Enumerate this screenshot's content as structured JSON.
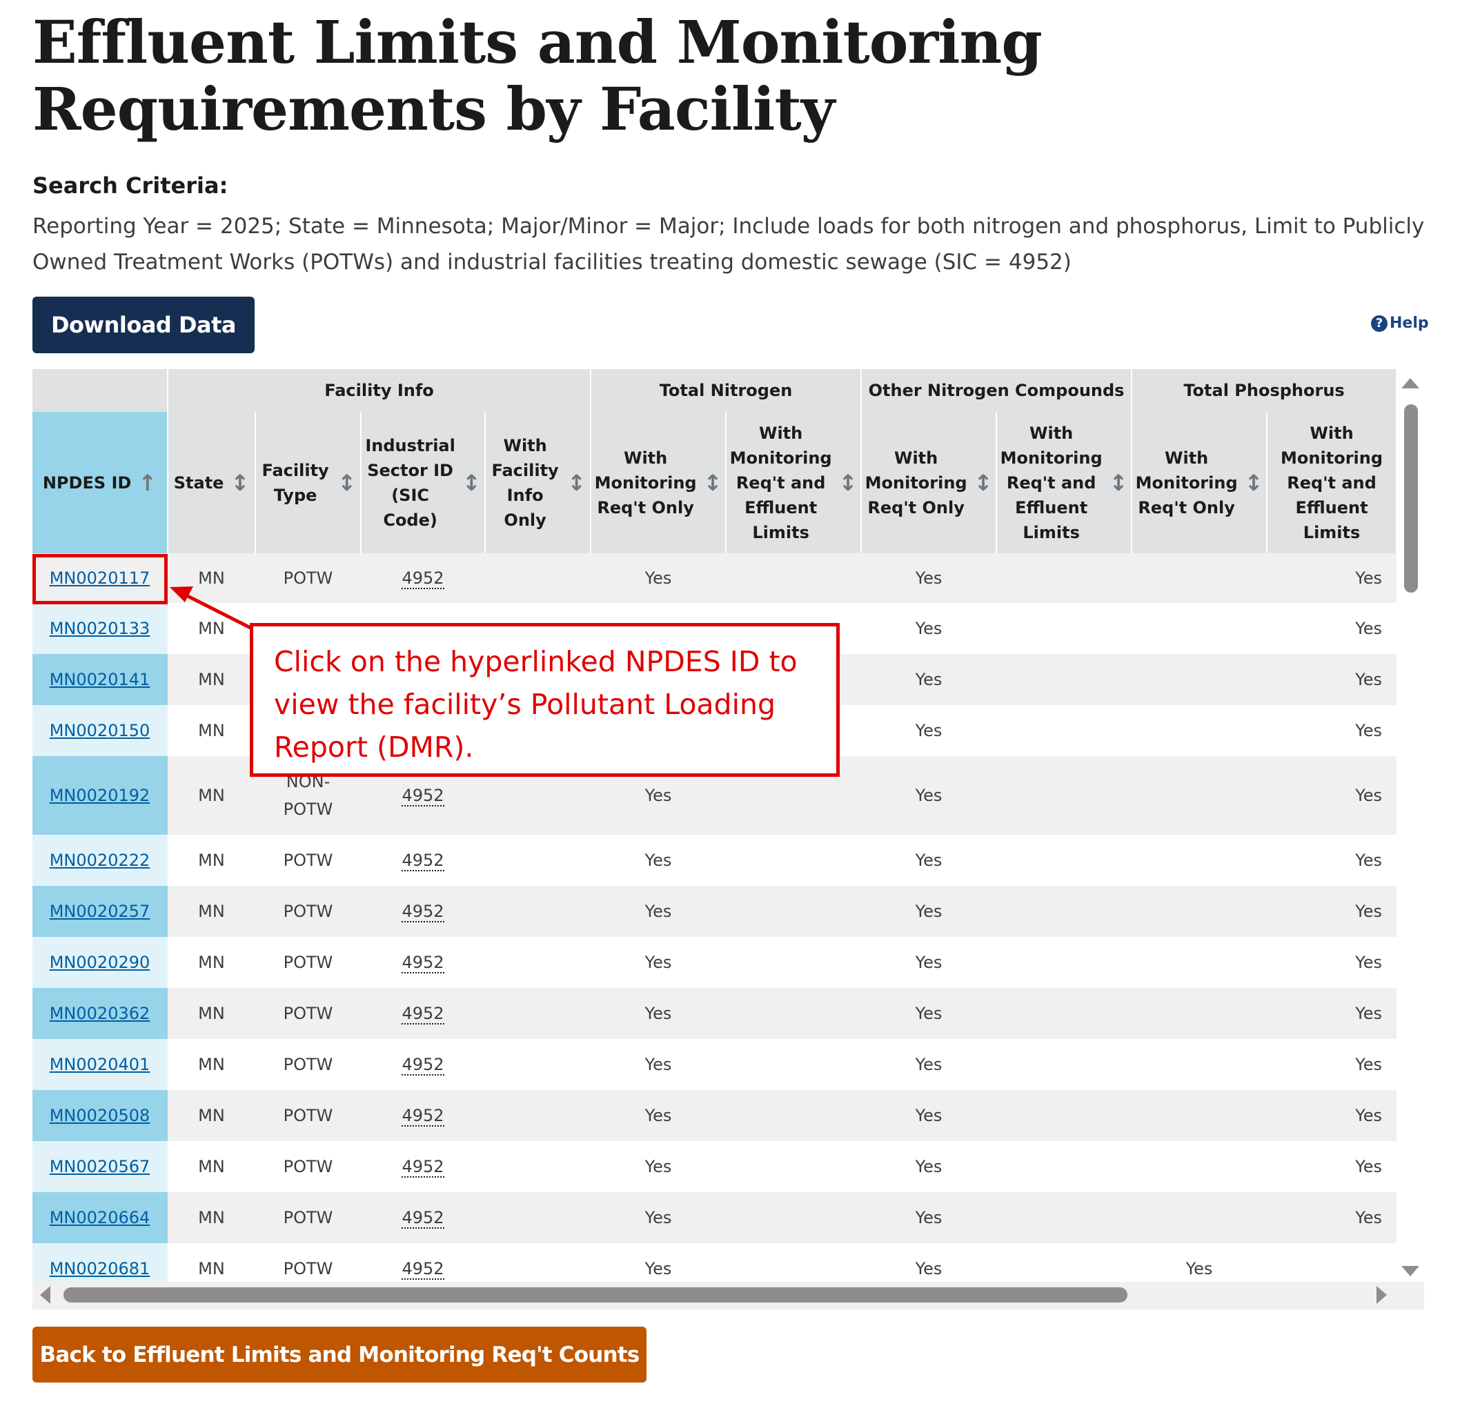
{
  "page": {
    "title": "Effluent Limits and Monitoring Requirements by Facility",
    "criteria_label": "Search Criteria:",
    "criteria_text": "Reporting Year = 2025; State = Minnesota; Major/Minor = Major; Include loads for both nitrogen and phosphorus, Limit to Publicly Owned Treatment Works (POTWs) and industrial facilities treating domestic sewage (SIC = 4952)",
    "download_label": "Download Data",
    "help_label": "Help",
    "back_label": "Back to Effluent Limits and Monitoring Req't Counts"
  },
  "table": {
    "groups": [
      {
        "label": ""
      },
      {
        "label": "Facility Info"
      },
      {
        "label": "Total Nitrogen"
      },
      {
        "label": "Other Nitrogen Compounds"
      },
      {
        "label": "Total Phosphorus"
      }
    ],
    "columns": [
      {
        "label": "NPDES ID"
      },
      {
        "label": "State"
      },
      {
        "label": "Facility Type"
      },
      {
        "label": "Industrial Sector ID (SIC Code)"
      },
      {
        "label": "With Facility Info Only"
      },
      {
        "label": "With Monitoring Req't Only"
      },
      {
        "label": "With Monitoring Req't and Effluent Limits"
      },
      {
        "label": "With Monitoring Req't Only"
      },
      {
        "label": "With Monitoring Req't and Effluent Limits"
      },
      {
        "label": "With Monitoring Req't Only"
      },
      {
        "label": "With Monitoring Req't and Effluent Limits"
      }
    ],
    "rows": [
      {
        "id": "MN0020117",
        "state": "MN",
        "type": "POTW",
        "sic": "4952",
        "fac_only": "",
        "tn_mon": "Yes",
        "tn_lim": "",
        "onc_mon": "Yes",
        "onc_lim": "",
        "tp_mon": "",
        "tp_lim": "Yes"
      },
      {
        "id": "MN0020133",
        "state": "MN",
        "type": "",
        "sic": "",
        "fac_only": "",
        "tn_mon": "",
        "tn_lim": "",
        "onc_mon": "Yes",
        "onc_lim": "",
        "tp_mon": "",
        "tp_lim": "Yes"
      },
      {
        "id": "MN0020141",
        "state": "MN",
        "type": "",
        "sic": "",
        "fac_only": "",
        "tn_mon": "",
        "tn_lim": "",
        "onc_mon": "Yes",
        "onc_lim": "",
        "tp_mon": "",
        "tp_lim": "Yes"
      },
      {
        "id": "MN0020150",
        "state": "MN",
        "type": "",
        "sic": "",
        "fac_only": "",
        "tn_mon": "",
        "tn_lim": "",
        "onc_mon": "Yes",
        "onc_lim": "",
        "tp_mon": "",
        "tp_lim": "Yes"
      },
      {
        "id": "MN0020192",
        "state": "MN",
        "type": "NON-POTW",
        "sic": "4952",
        "fac_only": "",
        "tn_mon": "Yes",
        "tn_lim": "",
        "onc_mon": "Yes",
        "onc_lim": "",
        "tp_mon": "",
        "tp_lim": "Yes"
      },
      {
        "id": "MN0020222",
        "state": "MN",
        "type": "POTW",
        "sic": "4952",
        "fac_only": "",
        "tn_mon": "Yes",
        "tn_lim": "",
        "onc_mon": "Yes",
        "onc_lim": "",
        "tp_mon": "",
        "tp_lim": "Yes"
      },
      {
        "id": "MN0020257",
        "state": "MN",
        "type": "POTW",
        "sic": "4952",
        "fac_only": "",
        "tn_mon": "Yes",
        "tn_lim": "",
        "onc_mon": "Yes",
        "onc_lim": "",
        "tp_mon": "",
        "tp_lim": "Yes"
      },
      {
        "id": "MN0020290",
        "state": "MN",
        "type": "POTW",
        "sic": "4952",
        "fac_only": "",
        "tn_mon": "Yes",
        "tn_lim": "",
        "onc_mon": "Yes",
        "onc_lim": "",
        "tp_mon": "",
        "tp_lim": "Yes"
      },
      {
        "id": "MN0020362",
        "state": "MN",
        "type": "POTW",
        "sic": "4952",
        "fac_only": "",
        "tn_mon": "Yes",
        "tn_lim": "",
        "onc_mon": "Yes",
        "onc_lim": "",
        "tp_mon": "",
        "tp_lim": "Yes"
      },
      {
        "id": "MN0020401",
        "state": "MN",
        "type": "POTW",
        "sic": "4952",
        "fac_only": "",
        "tn_mon": "Yes",
        "tn_lim": "",
        "onc_mon": "Yes",
        "onc_lim": "",
        "tp_mon": "",
        "tp_lim": "Yes"
      },
      {
        "id": "MN0020508",
        "state": "MN",
        "type": "POTW",
        "sic": "4952",
        "fac_only": "",
        "tn_mon": "Yes",
        "tn_lim": "",
        "onc_mon": "Yes",
        "onc_lim": "",
        "tp_mon": "",
        "tp_lim": "Yes"
      },
      {
        "id": "MN0020567",
        "state": "MN",
        "type": "POTW",
        "sic": "4952",
        "fac_only": "",
        "tn_mon": "Yes",
        "tn_lim": "",
        "onc_mon": "Yes",
        "onc_lim": "",
        "tp_mon": "",
        "tp_lim": "Yes"
      },
      {
        "id": "MN0020664",
        "state": "MN",
        "type": "POTW",
        "sic": "4952",
        "fac_only": "",
        "tn_mon": "Yes",
        "tn_lim": "",
        "onc_mon": "Yes",
        "onc_lim": "",
        "tp_mon": "",
        "tp_lim": "Yes"
      },
      {
        "id": "MN0020681",
        "state": "MN",
        "type": "POTW",
        "sic": "4952",
        "fac_only": "",
        "tn_mon": "Yes",
        "tn_lim": "",
        "onc_mon": "Yes",
        "onc_lim": "",
        "tp_mon": "Yes",
        "tp_lim": ""
      }
    ]
  },
  "annotation": {
    "text": "Click on the hyperlinked NPDES ID to view the facility’s Pollutant Loading Report (DMR).",
    "color": "#e00000"
  },
  "colors": {
    "header_bg": "#dfe1e2",
    "npdes_header_bg": "#97d4ea",
    "download_bg": "#162e51",
    "back_bg": "#c05600",
    "link": "#005ea2"
  }
}
